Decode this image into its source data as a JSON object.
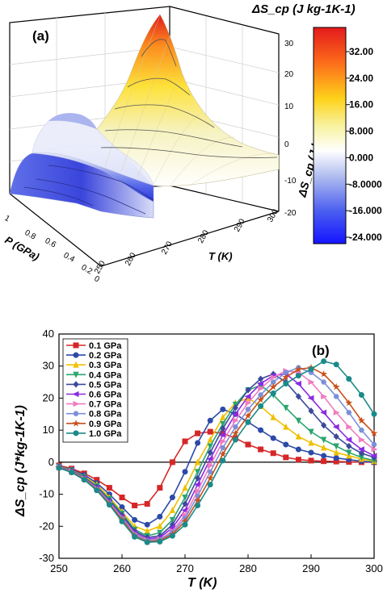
{
  "chart_data": [
    {
      "type": "surface",
      "panel_label": "(a)",
      "xlabel": "T (K)",
      "ylabel": "P (GPa)",
      "zlabel": "ΔS_cp (J kg-1K-1)",
      "x_ticks": [
        "250",
        "260",
        "270",
        "280",
        "290",
        "300"
      ],
      "y_ticks": [
        "0",
        "0.2",
        "0.4",
        "0.6",
        "0.8",
        "1"
      ],
      "z_ticks": [
        "-20",
        "-10",
        "0",
        "10",
        "20",
        "30"
      ],
      "xlim": [
        250,
        300
      ],
      "ylim": [
        0,
        1
      ],
      "zlim": [
        -25,
        35
      ],
      "colorbar": {
        "title": "ΔS_cp (J kg-1K-1)",
        "labels": [
          "32.00",
          "24.00",
          "16.00",
          "8.000",
          "0.000",
          "-8.0000",
          "-16.000",
          "-24.000"
        ],
        "range": [
          -24,
          32
        ]
      }
    },
    {
      "type": "line",
      "panel_label": "(b)",
      "xlabel": "T (K)",
      "ylabel": "ΔS_cp (J*kg-1K-1)",
      "xlim": [
        250,
        300
      ],
      "ylim": [
        -30,
        40
      ],
      "x_ticks": [
        "250",
        "260",
        "270",
        "280",
        "290",
        "300"
      ],
      "y_ticks": [
        "-30",
        "-20",
        "-10",
        "0",
        "10",
        "20",
        "30",
        "40"
      ],
      "legend_placement": "top-left",
      "series": [
        {
          "name": "0.1 GPa",
          "color": "#d62728",
          "marker": "square",
          "x": [
            250,
            252,
            254,
            256,
            258,
            260,
            262,
            264,
            266,
            268,
            270,
            272,
            274,
            276,
            278,
            280,
            282,
            284,
            286,
            288,
            290,
            292,
            294,
            296,
            298,
            300
          ],
          "y": [
            -1,
            -2,
            -3.5,
            -5.5,
            -8,
            -11,
            -13.5,
            -13,
            -8,
            0,
            6.5,
            9,
            9.5,
            9,
            7.5,
            5.5,
            4,
            2.8,
            1.5,
            0.8,
            0.5,
            0.3,
            0.2,
            0.1,
            0,
            0
          ]
        },
        {
          "name": "0.2 GPa",
          "color": "#2b4aa8",
          "marker": "circle",
          "x": [
            250,
            252,
            254,
            256,
            258,
            260,
            262,
            264,
            266,
            268,
            270,
            272,
            274,
            276,
            278,
            280,
            282,
            284,
            286,
            288,
            290,
            292,
            294,
            296,
            298,
            300
          ],
          "y": [
            -1.2,
            -2.3,
            -4,
            -6.5,
            -10,
            -14,
            -18,
            -19.5,
            -17,
            -11,
            -3,
            6,
            13,
            16.5,
            15,
            12.5,
            10,
            7.5,
            5.5,
            4,
            3,
            2,
            1.3,
            0.8,
            0.3,
            0
          ]
        },
        {
          "name": "0.3 GPa",
          "color": "#f0c000",
          "marker": "triangle-up",
          "x": [
            250,
            252,
            254,
            256,
            258,
            260,
            262,
            264,
            266,
            268,
            270,
            272,
            274,
            276,
            278,
            280,
            282,
            284,
            286,
            288,
            290,
            292,
            294,
            296,
            298,
            300
          ],
          "y": [
            -1.3,
            -2.5,
            -4.5,
            -7,
            -11,
            -15.5,
            -20,
            -21.5,
            -20,
            -15,
            -8,
            0,
            7,
            14,
            18.5,
            20,
            17.5,
            14,
            11,
            8,
            6,
            4.5,
            3,
            2,
            1,
            0.3
          ]
        },
        {
          "name": "0.4 GPa",
          "color": "#2aa56e",
          "marker": "triangle-down",
          "x": [
            250,
            252,
            254,
            256,
            258,
            260,
            262,
            264,
            266,
            268,
            270,
            272,
            274,
            276,
            278,
            280,
            282,
            284,
            286,
            288,
            290,
            292,
            294,
            296,
            298,
            300
          ],
          "y": [
            -1.4,
            -2.6,
            -4.7,
            -7.5,
            -11.5,
            -16,
            -21,
            -23,
            -22,
            -18,
            -11,
            -3,
            5,
            12,
            18,
            22.5,
            24,
            21,
            17,
            13,
            9.5,
            7,
            5,
            3,
            1.5,
            0.5
          ]
        },
        {
          "name": "0.5 GPa",
          "color": "#3b4a9c",
          "marker": "diamond",
          "x": [
            250,
            252,
            254,
            256,
            258,
            260,
            262,
            264,
            266,
            268,
            270,
            272,
            274,
            276,
            278,
            280,
            282,
            284,
            286,
            288,
            290,
            292,
            294,
            296,
            298,
            300
          ],
          "y": [
            -1.5,
            -2.7,
            -4.8,
            -7.8,
            -12,
            -16.5,
            -21.5,
            -23.5,
            -23,
            -19.5,
            -13,
            -5,
            3,
            10.5,
            17,
            22.5,
            26,
            27.5,
            25,
            20.5,
            16,
            11.5,
            8,
            5,
            2.8,
            1.5
          ]
        },
        {
          "name": "0.6 GPa",
          "color": "#8a2be2",
          "marker": "triangle-left",
          "x": [
            250,
            252,
            254,
            256,
            258,
            260,
            262,
            264,
            266,
            268,
            270,
            272,
            274,
            276,
            278,
            280,
            282,
            284,
            286,
            288,
            290,
            292,
            294,
            296,
            298,
            300
          ],
          "y": [
            -1.5,
            -2.8,
            -5,
            -8,
            -12.3,
            -17,
            -22,
            -24,
            -23.5,
            -20.5,
            -15,
            -7,
            1,
            8.5,
            15,
            20.5,
            24.5,
            27,
            27.5,
            24.5,
            20,
            15.5,
            11,
            7,
            4,
            2
          ]
        },
        {
          "name": "0.7 GPa",
          "color": "#f07cc0",
          "marker": "triangle-right",
          "x": [
            250,
            252,
            254,
            256,
            258,
            260,
            262,
            264,
            266,
            268,
            270,
            272,
            274,
            276,
            278,
            280,
            282,
            284,
            286,
            288,
            290,
            292,
            294,
            296,
            298,
            300
          ],
          "y": [
            -1.6,
            -2.9,
            -5.1,
            -8.2,
            -12.5,
            -17.3,
            -22.3,
            -24.3,
            -24,
            -21.5,
            -16.5,
            -9,
            -1,
            6.5,
            13,
            18.5,
            23,
            26.5,
            28.5,
            28,
            25,
            20.5,
            15.5,
            11,
            7,
            4
          ]
        },
        {
          "name": "0.8 GPa",
          "color": "#7c8fd8",
          "marker": "hexagon",
          "x": [
            250,
            252,
            254,
            256,
            258,
            260,
            262,
            264,
            266,
            268,
            270,
            272,
            274,
            276,
            278,
            280,
            282,
            284,
            286,
            288,
            290,
            292,
            294,
            296,
            298,
            300
          ],
          "y": [
            -1.6,
            -3,
            -5.2,
            -8.4,
            -12.7,
            -17.6,
            -22.6,
            -24.5,
            -24.2,
            -22,
            -17.5,
            -10.5,
            -3,
            4.5,
            11,
            16.5,
            21,
            25,
            28,
            29.5,
            28,
            25,
            20.5,
            15.5,
            10,
            5.5
          ]
        },
        {
          "name": "0.9 GPa",
          "color": "#c8501a",
          "marker": "star",
          "x": [
            250,
            252,
            254,
            256,
            258,
            260,
            262,
            264,
            266,
            268,
            270,
            272,
            274,
            276,
            278,
            280,
            282,
            284,
            286,
            288,
            290,
            292,
            294,
            296,
            298,
            300
          ],
          "y": [
            -1.7,
            -3.1,
            -5.3,
            -8.6,
            -13,
            -18,
            -23,
            -24.8,
            -24.5,
            -22.5,
            -18.5,
            -12,
            -5,
            2.5,
            9,
            14.5,
            19.5,
            23.5,
            26.5,
            29,
            29.5,
            27.5,
            23.5,
            18.5,
            13,
            9
          ]
        },
        {
          "name": "1.0 GPa",
          "color": "#1a8a8a",
          "marker": "circle",
          "x": [
            250,
            252,
            254,
            256,
            258,
            260,
            262,
            264,
            266,
            268,
            270,
            272,
            274,
            276,
            278,
            280,
            282,
            284,
            286,
            288,
            290,
            292,
            294,
            296,
            298,
            300
          ],
          "y": [
            -1.8,
            -3.2,
            -5.5,
            -8.8,
            -13.3,
            -18.5,
            -23.3,
            -25,
            -24.8,
            -23,
            -19.5,
            -13.5,
            -7,
            0.5,
            7,
            12.5,
            17.5,
            21.5,
            24.5,
            27,
            29,
            31.5,
            30.5,
            26,
            21,
            15
          ]
        }
      ]
    }
  ]
}
